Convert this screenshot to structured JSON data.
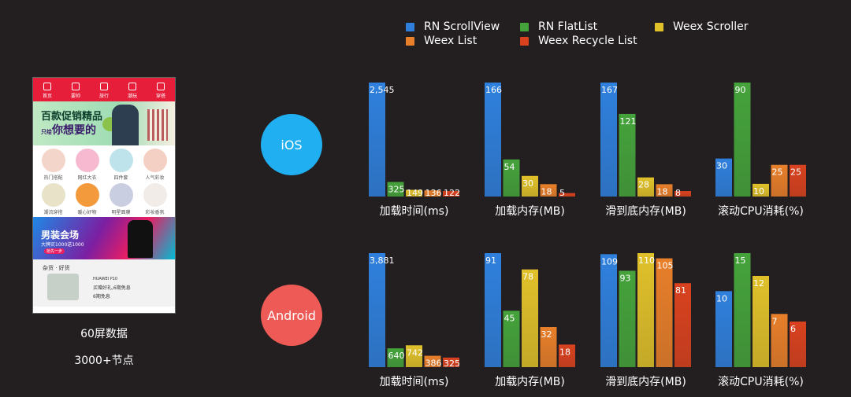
{
  "colors": {
    "rn_scrollview": "#2f80dd",
    "rn_flatlist": "#45a33b",
    "weex_scroller": "#e0c12a",
    "weex_list": "#e87f2a",
    "weex_recycle_list": "#d9421f"
  },
  "phone": {
    "tabs": [
      "首页",
      "要帅",
      "旅行",
      "潮玩",
      "穿搭"
    ],
    "banner_title": "百款促销精品",
    "banner_sub": "你想要的",
    "banner_sub_small": "只给",
    "items": [
      "热门搭配",
      "网红大衣",
      "四件套",
      "人气彩妆",
      "潮流穿搭",
      "暖心好物",
      "明星面膜",
      "彩妆香氛"
    ],
    "sale_title": "男装会场",
    "sale_sub": "大牌买1000送1000",
    "sale_btn": "抢先一步",
    "bottom_title": "杂货 · 好货",
    "bottom_product": "HUAWEI P10",
    "bottom_line1": "买赠好礼,6期免息",
    "bottom_line2": "6期免息"
  },
  "captions": {
    "line1": "60屏数据",
    "line2": "3000+节点"
  },
  "platforms": {
    "ios": "iOS",
    "android": "Android"
  },
  "chart_data": {
    "type": "bar",
    "legend": [
      "RN ScrollView",
      "RN FlatList",
      "Weex Scroller",
      "Weex List",
      "Weex Recycle List"
    ],
    "legend_placement": "top",
    "grid": false,
    "panels": [
      {
        "platform": "iOS",
        "xlabel": "加载时间(ms)",
        "values": [
          2545,
          325,
          149,
          136,
          122
        ],
        "labels": [
          "2,545",
          "325",
          "149",
          "136",
          "122"
        ]
      },
      {
        "platform": "iOS",
        "xlabel": "加载内存(MB)",
        "values": [
          166,
          54,
          30,
          18,
          5
        ],
        "labels": [
          "166",
          "54",
          "30",
          "18",
          "5"
        ]
      },
      {
        "platform": "iOS",
        "xlabel": "滑到底内存(MB)",
        "values": [
          167,
          121,
          28,
          18,
          8
        ],
        "labels": [
          "167",
          "121",
          "28",
          "18",
          "8"
        ]
      },
      {
        "platform": "iOS",
        "xlabel": "滚动CPU消耗(%)",
        "values": [
          30,
          90,
          10,
          25,
          25
        ],
        "labels": [
          "30",
          "90",
          "10",
          "25",
          "25"
        ]
      },
      {
        "platform": "Android",
        "xlabel": "加载时间(ms)",
        "values": [
          3881,
          640,
          742,
          386,
          325
        ],
        "labels": [
          "3,881",
          "640",
          "742",
          "386",
          "325"
        ]
      },
      {
        "platform": "Android",
        "xlabel": "加载内存(MB)",
        "values": [
          91,
          45,
          78,
          32,
          18
        ],
        "labels": [
          "91",
          "45",
          "78",
          "32",
          "18"
        ]
      },
      {
        "platform": "Android",
        "xlabel": "滑到底内存(MB)",
        "values": [
          109,
          93,
          110,
          105,
          81
        ],
        "labels": [
          "109",
          "93",
          "110",
          "105",
          "81"
        ]
      },
      {
        "platform": "Android",
        "xlabel": "滚动CPU消耗(%)",
        "values": [
          10,
          15,
          12,
          7,
          6
        ],
        "labels": [
          "10",
          "15",
          "12",
          "7",
          "6"
        ]
      }
    ]
  }
}
